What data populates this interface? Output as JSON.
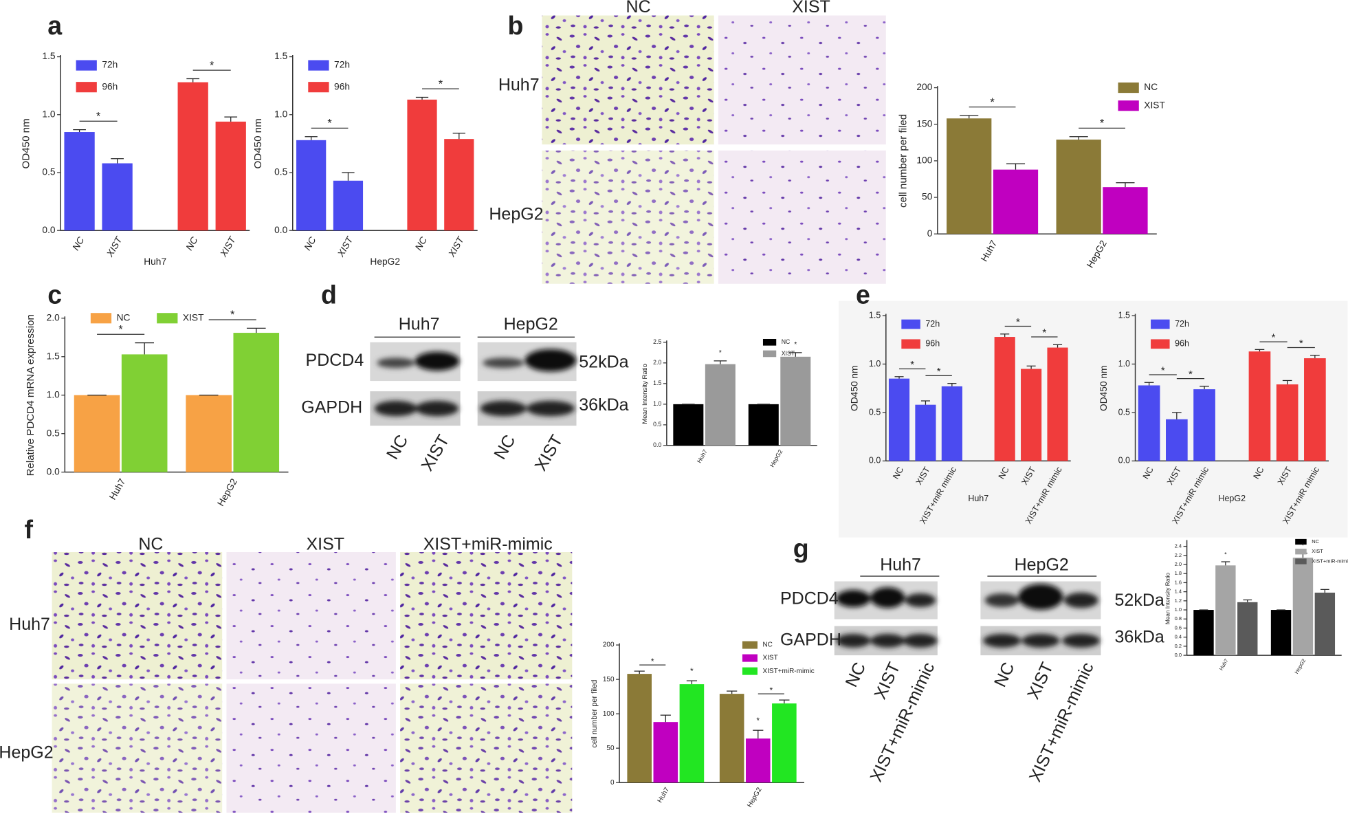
{
  "panel_letters": [
    "a",
    "b",
    "c",
    "d",
    "e",
    "f",
    "g"
  ],
  "b_images": {
    "columns": [
      "NC",
      "XIST"
    ],
    "rows": [
      "Huh7",
      "HepG2"
    ]
  },
  "d_blot": {
    "groups": [
      "Huh7",
      "HepG2"
    ],
    "proteins": [
      "PDCD4",
      "GAPDH"
    ],
    "sizes": [
      "52kDa",
      "36kDa"
    ],
    "lanes": [
      "NC",
      "XIST",
      "NC",
      "XIST"
    ]
  },
  "f_images": {
    "columns": [
      "NC",
      "XIST",
      "XIST+miR-mimic"
    ],
    "rows": [
      "Huh7",
      "HepG2"
    ]
  },
  "g_blot": {
    "groups": [
      "Huh7",
      "HepG2"
    ],
    "proteins": [
      "PDCD4",
      "GAPDH"
    ],
    "sizes": [
      "52kDa",
      "36kDa"
    ],
    "lanes": [
      "NC",
      "XIST",
      "XIST+miR-mimic",
      "NC",
      "XIST",
      "XIST+miR-mimic"
    ]
  },
  "chart_data": [
    {
      "type": "bar",
      "categories": [
        "NC",
        "XIST",
        "NC",
        "XIST"
      ],
      "xlabel": "Huh7",
      "ylabel": "OD450 nm",
      "ylim": [
        0,
        1.5
      ],
      "yticks": [
        {
          "value": 0,
          "label": "0.0"
        },
        0.5,
        {
          "value": 1,
          "label": "1.0"
        },
        1.5
      ],
      "legend": "top-left",
      "annotations": [
        "*",
        "*"
      ],
      "series": [
        {
          "name": "72h",
          "color": "#4b4bf0",
          "values": [
            0.85,
            0.58,
            null,
            null
          ],
          "errors": [
            0.02,
            0.04,
            null,
            null
          ]
        },
        {
          "name": "96h",
          "color": "#f03c3c",
          "values": [
            null,
            null,
            1.28,
            0.94
          ],
          "errors": [
            null,
            null,
            0.03,
            0.04
          ]
        }
      ]
    },
    {
      "type": "bar",
      "categories": [
        "NC",
        "XIST",
        "NC",
        "XIST"
      ],
      "xlabel": "HepG2",
      "ylabel": "OD450 nm",
      "ylim": [
        0,
        1.5
      ],
      "yticks": [
        {
          "value": 0,
          "label": "0.0"
        },
        0.5,
        {
          "value": 1,
          "label": "1.0"
        },
        1.5
      ],
      "legend": "top-left",
      "annotations": [
        "*",
        "*"
      ],
      "series": [
        {
          "name": "72h",
          "color": "#4b4bf0",
          "values": [
            0.78,
            0.43,
            null,
            null
          ],
          "errors": [
            0.03,
            0.07,
            null,
            null
          ]
        },
        {
          "name": "96h",
          "color": "#f03c3c",
          "values": [
            null,
            null,
            1.13,
            0.79
          ],
          "errors": [
            null,
            null,
            0.02,
            0.05
          ]
        }
      ]
    },
    {
      "type": "bar",
      "categories": [
        "Huh7",
        "HepG2"
      ],
      "ylabel": "cell number per filed",
      "ylim": [
        0,
        200
      ],
      "yticks": [
        0,
        50,
        100,
        150,
        200
      ],
      "legend": "top-right",
      "annotations": [
        "*",
        "*"
      ],
      "series": [
        {
          "name": "NC",
          "color": "#8b7a37",
          "values": [
            158,
            129
          ],
          "errors": [
            4,
            4
          ]
        },
        {
          "name": "XIST",
          "color": "#c000c0",
          "values": [
            88,
            64
          ],
          "errors": [
            8,
            6
          ]
        }
      ]
    },
    {
      "type": "bar",
      "categories": [
        "Huh7",
        "HepG2"
      ],
      "ylabel": "Relative PDCD4 mRNA expression",
      "ylim": [
        0,
        2
      ],
      "yticks": [
        {
          "value": 0,
          "label": "0.0"
        },
        0.5,
        {
          "value": 1,
          "label": "1.0"
        },
        1.5,
        {
          "value": 2,
          "label": "2.0"
        }
      ],
      "legend": "top",
      "annotations": [
        "*",
        "*"
      ],
      "series": [
        {
          "name": "NC",
          "color": "#f7a245",
          "values": [
            1,
            1
          ],
          "errors": [
            0,
            0
          ]
        },
        {
          "name": "XIST",
          "color": "#80d034",
          "values": [
            1.53,
            1.81
          ],
          "errors": [
            0.15,
            0.06
          ]
        }
      ]
    },
    {
      "type": "bar",
      "categories": [
        "Huh7",
        "HepG2"
      ],
      "ylabel": "Mean Intensity Ratio",
      "ylim": [
        0,
        2.5
      ],
      "yticks": [
        {
          "value": 0,
          "label": "0.0"
        },
        0.5,
        {
          "value": 1,
          "label": "1.0"
        },
        1.5,
        {
          "value": 2,
          "label": "2.0"
        },
        2.5
      ],
      "legend": "top-right",
      "annotations": [
        "*",
        "*"
      ],
      "series": [
        {
          "name": "NC",
          "color": "#000000",
          "values": [
            1,
            1
          ],
          "errors": [
            0,
            0
          ]
        },
        {
          "name": "XIST",
          "color": "#9a9a9a",
          "values": [
            1.97,
            2.15
          ],
          "errors": [
            0.08,
            0.1
          ]
        }
      ]
    },
    {
      "type": "bar",
      "categories": [
        "NC",
        "XIST",
        "XIST+miR mimic",
        "NC",
        "XIST",
        "XIST+miR mimic"
      ],
      "xlabel": "Huh7",
      "ylabel": "OD450 nm",
      "ylim": [
        0,
        1.5
      ],
      "yticks": [
        {
          "value": 0,
          "label": "0.0"
        },
        0.5,
        {
          "value": 1,
          "label": "1.0"
        },
        1.5
      ],
      "legend": "top-left",
      "annotations": [
        "*",
        "*",
        "*",
        "*"
      ],
      "series": [
        {
          "name": "72h",
          "color": "#4b4bf0",
          "values": [
            0.85,
            0.58,
            0.77,
            null,
            null,
            null
          ],
          "errors": [
            0.02,
            0.04,
            0.03,
            null,
            null,
            null
          ]
        },
        {
          "name": "96h",
          "color": "#f03c3c",
          "values": [
            null,
            null,
            null,
            1.28,
            0.95,
            1.17
          ],
          "errors": [
            null,
            null,
            null,
            0.03,
            0.03,
            0.03
          ]
        }
      ]
    },
    {
      "type": "bar",
      "categories": [
        "NC",
        "XIST",
        "XIST+miR mimic",
        "NC",
        "XIST",
        "XIST+miR mimic"
      ],
      "xlabel": "HepG2",
      "ylabel": "OD450 nm",
      "ylim": [
        0,
        1.5
      ],
      "yticks": [
        {
          "value": 0,
          "label": "0.0"
        },
        0.5,
        {
          "value": 1,
          "label": "1.0"
        },
        1.5
      ],
      "legend": "top-left",
      "annotations": [
        "*",
        "*",
        "*",
        "*"
      ],
      "series": [
        {
          "name": "72h",
          "color": "#4b4bf0",
          "values": [
            0.78,
            0.43,
            0.74,
            null,
            null,
            null
          ],
          "errors": [
            0.03,
            0.07,
            0.03,
            null,
            null,
            null
          ]
        },
        {
          "name": "96h",
          "color": "#f03c3c",
          "values": [
            null,
            null,
            null,
            1.13,
            0.79,
            1.06
          ],
          "errors": [
            null,
            null,
            null,
            0.02,
            0.04,
            0.03
          ]
        }
      ]
    },
    {
      "type": "bar",
      "categories": [
        "Huh7",
        "HepG2"
      ],
      "ylabel": "cell number per filed",
      "ylim": [
        0,
        200
      ],
      "yticks": [
        0,
        50,
        100,
        150,
        200
      ],
      "legend": "top-right",
      "annotations": [
        "*",
        "*",
        "*",
        "*"
      ],
      "series": [
        {
          "name": "NC",
          "color": "#8b7a37",
          "values": [
            158,
            129
          ],
          "errors": [
            4,
            4
          ]
        },
        {
          "name": "XIST",
          "color": "#c000c0",
          "values": [
            88,
            64
          ],
          "errors": [
            10,
            12
          ]
        },
        {
          "name": "XIST+miR-mimic",
          "color": "#22e622",
          "values": [
            143,
            115
          ],
          "errors": [
            5,
            5
          ]
        }
      ]
    },
    {
      "type": "bar",
      "categories": [
        "Huh7",
        "HepG2"
      ],
      "ylabel": "Mean Intensity Ratio",
      "ylim": [
        0,
        2.5
      ],
      "yticks": [
        {
          "value": 0,
          "label": "0.0"
        },
        0.2,
        0.4,
        0.6,
        0.8,
        {
          "value": 1,
          "label": "1.0"
        },
        1.2,
        1.4,
        1.6,
        1.8,
        {
          "value": 2,
          "label": "2.0"
        },
        2.2,
        2.4
      ],
      "legend": "top-right",
      "annotations": [
        "*",
        "*"
      ],
      "series": [
        {
          "name": "NC",
          "color": "#000000",
          "values": [
            1,
            1
          ],
          "errors": [
            0,
            0
          ]
        },
        {
          "name": "XIST",
          "color": "#a5a5a5",
          "values": [
            1.98,
            2.15
          ],
          "errors": [
            0.08,
            0.1
          ]
        },
        {
          "name": "XIST+miR-mimic",
          "color": "#5a5a5a",
          "values": [
            1.17,
            1.38
          ],
          "errors": [
            0.05,
            0.07
          ]
        }
      ]
    }
  ]
}
